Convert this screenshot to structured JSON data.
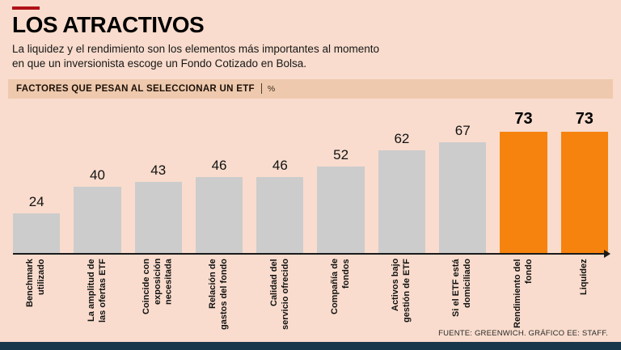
{
  "colors": {
    "background": "#f9dccd",
    "panel_strip": "#eec9ad",
    "bar_default": "#cccccc",
    "bar_highlight": "#f6830e",
    "accent_red": "#b01118",
    "footer_strip": "#17384a",
    "text": "#111111"
  },
  "header": {
    "title": "LOS ATRACTIVOS",
    "subtitle_line1": "La liquidez y el rendimiento son los elementos más importantes al momento",
    "subtitle_line2": "en que un inversionista escoge un Fondo Cotizado en Bolsa."
  },
  "chart_header": {
    "label": "FACTORES QUE PESAN AL SELECCIONAR UN ETF",
    "unit": "%"
  },
  "chart_data": {
    "type": "bar",
    "title": "Factores que pesan al seleccionar un ETF",
    "unit": "%",
    "categories": [
      "Benchmark utilizado",
      "La amplitud de las ofertas ETF",
      "Coincide con exposición necesitada",
      "Relación de gastos del fondo",
      "Calidad del servicio ofrecido",
      "Compañía de fondos",
      "Activos bajo gestión de ETF",
      "Si el ETF está domiciliado",
      "Rendimiento del fondo",
      "Liquidez"
    ],
    "values": [
      24,
      40,
      43,
      46,
      46,
      52,
      62,
      67,
      73,
      73
    ],
    "highlight_indexes": [
      8,
      9
    ],
    "bar_colors": {
      "default": "#cccccc",
      "highlight": "#f6830e"
    },
    "ylim": [
      0,
      80
    ],
    "grid": false,
    "legend": false,
    "value_labels": "above bars",
    "category_label_orientation": "vertical"
  },
  "footer": {
    "source": "FUENTE: GREENWICH. GRÁFICO EE: STAFF."
  }
}
